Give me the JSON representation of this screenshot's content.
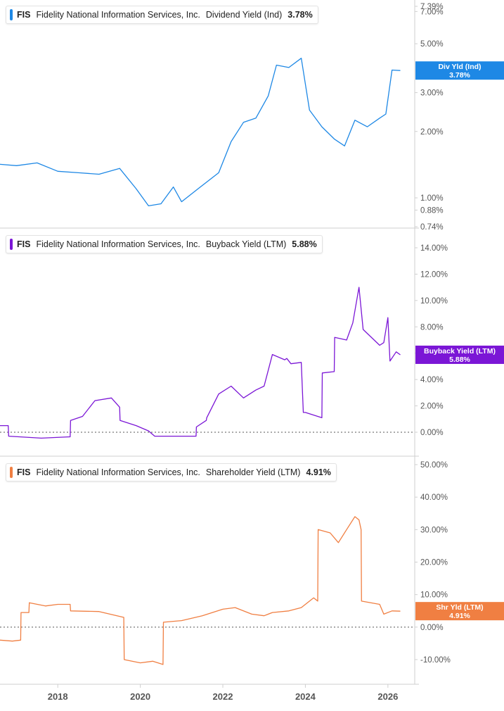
{
  "chart_data": [
    {
      "type": "line",
      "ticker": "FIS",
      "company": "Fidelity National Information Services, Inc.",
      "metric": "Dividend Yield (Ind)",
      "latest_value": "3.78%",
      "flag_label": "Div Yld (Ind)",
      "flag_value": "3.78%",
      "color": "#1e88e5",
      "y_scale": "log",
      "ylim": [
        0.74,
        7.39
      ],
      "yticks": [
        "7.39%",
        "7.00%",
        "5.00%",
        "3.00%",
        "2.00%",
        "1.00%",
        "0.88%",
        "0.74%"
      ],
      "series": [
        {
          "x": [
            2016.6,
            2017.0,
            2017.5,
            2018.0,
            2018.5,
            2019.0,
            2019.5,
            2019.9,
            2020.2,
            2020.5,
            2020.8,
            2021.0,
            2021.4,
            2021.9,
            2022.2,
            2022.5,
            2022.8,
            2023.1,
            2023.3,
            2023.6,
            2023.9,
            2024.1,
            2024.4,
            2024.7,
            2024.95,
            2025.2,
            2025.5,
            2025.8,
            2025.95,
            2026.1,
            2026.3
          ],
          "y": [
            1.42,
            1.4,
            1.44,
            1.32,
            1.3,
            1.28,
            1.36,
            1.1,
            0.92,
            0.94,
            1.12,
            0.96,
            1.1,
            1.3,
            1.8,
            2.2,
            2.3,
            2.9,
            4.0,
            3.9,
            4.3,
            2.5,
            2.1,
            1.85,
            1.72,
            2.25,
            2.1,
            2.3,
            2.4,
            3.8,
            3.78
          ]
        }
      ]
    },
    {
      "type": "line",
      "ticker": "FIS",
      "company": "Fidelity National Information Services, Inc.",
      "metric": "Buyback Yield (LTM)",
      "latest_value": "5.88%",
      "flag_label": "Buyback Yield (LTM)",
      "flag_value": "5.88%",
      "color": "#7b16d6",
      "y_scale": "linear",
      "ylim": [
        -1.0,
        14.0
      ],
      "yticks": [
        "14.00%",
        "12.00%",
        "10.00%",
        "8.00%",
        "6.00%",
        "4.00%",
        "2.00%",
        "0.00%"
      ],
      "reference_line": 0,
      "series": [
        {
          "x": [
            2016.6,
            2016.8,
            2016.81,
            2017.6,
            2018.3,
            2018.31,
            2018.6,
            2018.9,
            2019.3,
            2019.5,
            2019.51,
            2019.9,
            2020.2,
            2020.35,
            2020.36,
            2021.0,
            2021.35,
            2021.36,
            2021.6,
            2021.61,
            2021.9,
            2022.2,
            2022.5,
            2022.8,
            2023.0,
            2023.2,
            2023.5,
            2023.55,
            2023.65,
            2023.9,
            2023.95,
            2024.0,
            2024.4,
            2024.41,
            2024.7,
            2024.71,
            2025.0,
            2025.15,
            2025.3,
            2025.4,
            2025.8,
            2025.9,
            2026.0,
            2026.05,
            2026.2,
            2026.3
          ],
          "y": [
            0.5,
            0.5,
            -0.3,
            -0.45,
            -0.35,
            0.9,
            1.2,
            2.4,
            2.6,
            1.9,
            0.9,
            0.5,
            0.1,
            -0.3,
            -0.3,
            -0.3,
            -0.3,
            0.4,
            0.9,
            1.1,
            2.9,
            3.5,
            2.6,
            3.2,
            3.5,
            5.9,
            5.5,
            5.6,
            5.2,
            5.3,
            1.5,
            1.5,
            1.1,
            4.5,
            4.6,
            7.2,
            7.0,
            8.3,
            11.0,
            7.8,
            6.6,
            6.8,
            8.7,
            5.4,
            6.1,
            5.88
          ]
        }
      ]
    },
    {
      "type": "line",
      "ticker": "FIS",
      "company": "Fidelity National Information Services, Inc.",
      "metric": "Shareholder Yield (LTM)",
      "latest_value": "4.91%",
      "flag_label": "Shr Yld (LTM)",
      "flag_value": "4.91%",
      "color": "#f07f42",
      "y_scale": "linear",
      "ylim": [
        -15.0,
        50.0
      ],
      "yticks": [
        "50.00%",
        "40.00%",
        "30.00%",
        "20.00%",
        "10.00%",
        "0.00%",
        "-10.00%"
      ],
      "reference_line": 0,
      "series": [
        {
          "x": [
            2016.6,
            2016.9,
            2017.1,
            2017.11,
            2017.3,
            2017.31,
            2017.7,
            2018.0,
            2018.3,
            2018.31,
            2019.0,
            2019.6,
            2019.61,
            2020.0,
            2020.3,
            2020.55,
            2020.56,
            2021.0,
            2021.5,
            2022.0,
            2022.3,
            2022.7,
            2023.0,
            2023.2,
            2023.6,
            2023.9,
            2024.2,
            2024.3,
            2024.31,
            2024.6,
            2024.8,
            2025.0,
            2025.2,
            2025.3,
            2025.35,
            2025.36,
            2025.8,
            2025.9,
            2026.1,
            2026.3
          ],
          "y": [
            -4.0,
            -4.3,
            -4.0,
            4.5,
            4.5,
            7.5,
            6.5,
            7.0,
            7.0,
            5.0,
            4.8,
            3.0,
            -10.0,
            -11.0,
            -10.5,
            -11.5,
            1.5,
            2.0,
            3.5,
            5.5,
            6.0,
            4.0,
            3.5,
            4.5,
            5.0,
            6.0,
            9.0,
            8.0,
            30.0,
            29.0,
            26.0,
            30.0,
            34.0,
            33.0,
            30.0,
            8.0,
            7.0,
            4.0,
            5.0,
            4.91
          ]
        }
      ]
    }
  ],
  "x_axis": {
    "ticks": [
      {
        "value": 2018,
        "label": "2018"
      },
      {
        "value": 2020,
        "label": "2020"
      },
      {
        "value": 2022,
        "label": "2022"
      },
      {
        "value": 2024,
        "label": "2024"
      },
      {
        "value": 2026,
        "label": "2026"
      }
    ],
    "range": [
      2016.6,
      2026.65
    ]
  }
}
